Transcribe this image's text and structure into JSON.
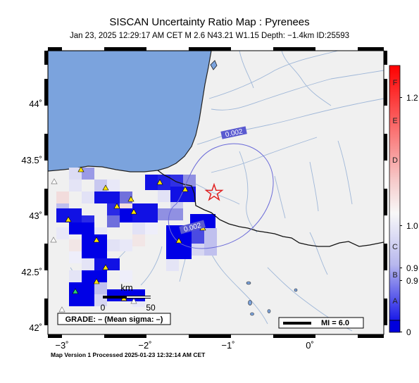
{
  "header": {
    "title": "SISCAN Uncertainty Ratio Map : Pyrenees",
    "subtitle": "Jan 23, 2025 12:29:17 AM CET   M 2.6   N43.21 W1.15   Depth: −1.4km   ID:25593"
  },
  "map": {
    "lat_ticks": [
      "44˚",
      "43.5˚",
      "43˚",
      "42.5˚",
      "42˚"
    ],
    "lon_ticks": [
      "−3˚",
      "−2˚",
      "−1˚",
      "0˚"
    ],
    "contour_labels": [
      "0.002",
      "0.002"
    ],
    "scale_bar": {
      "unit": "km",
      "start": "0",
      "end": "50"
    },
    "grade_box": "GRADE: – (Mean sigma: –)",
    "mi_legend": "MI = 6.0",
    "epicenter": {
      "lat": 43.21,
      "lon": -1.15
    },
    "colors": {
      "sea": "#7ba3dd",
      "land": "#f0f0f0",
      "cell_blue": "#0000e6",
      "epicenter": "#e02020"
    }
  },
  "colorbar": {
    "letter_labels": [
      "F",
      "E",
      "D",
      "C",
      "B",
      "A"
    ],
    "value_labels": [
      "1.2",
      "1.0",
      "0.9",
      "0.9",
      "0"
    ],
    "colors": {
      "top": "#ff0000",
      "mid": "#f8f8f8",
      "bottom": "#0000dd"
    }
  },
  "footer": "Map Version 1 Processed 2025-01-23 12:32:14 AM CET"
}
